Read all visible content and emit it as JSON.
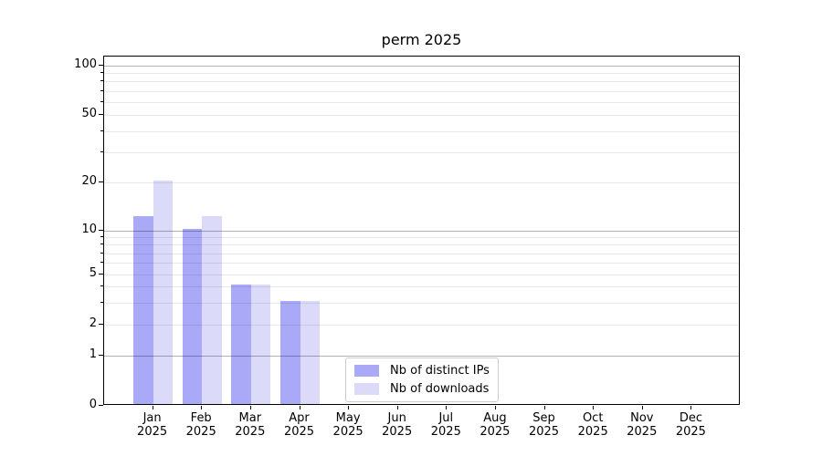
{
  "chart_data": {
    "type": "bar",
    "title": "perm 2025",
    "categories": [
      "Jan 2025",
      "Feb 2025",
      "Mar 2025",
      "Apr 2025",
      "May 2025",
      "Jun 2025",
      "Jul 2025",
      "Aug 2025",
      "Sep 2025",
      "Oct 2025",
      "Nov 2025",
      "Dec 2025"
    ],
    "series": [
      {
        "name": "Nb of distinct IPs",
        "color": "#a9a9f7",
        "values": [
          12,
          10,
          4,
          3,
          0,
          0,
          0,
          0,
          0,
          0,
          0,
          0
        ]
      },
      {
        "name": "Nb of downloads",
        "color": "#dbdbf9",
        "values": [
          20,
          12,
          4,
          3,
          0,
          0,
          0,
          0,
          0,
          0,
          0,
          0
        ]
      }
    ],
    "yticks": [
      100,
      50,
      20,
      10,
      5,
      2,
      1,
      0
    ],
    "ylim": [
      0,
      113
    ],
    "yscale": "log-with-zero",
    "grid": true,
    "legend_position": "lower center",
    "colors": {
      "axis": "#000000",
      "major_grid": "rgba(0,0,0,0.30)",
      "minor_grid": "rgba(0,0,0,0.09)",
      "legend_border": "#cccccc",
      "background": "#ffffff"
    }
  }
}
